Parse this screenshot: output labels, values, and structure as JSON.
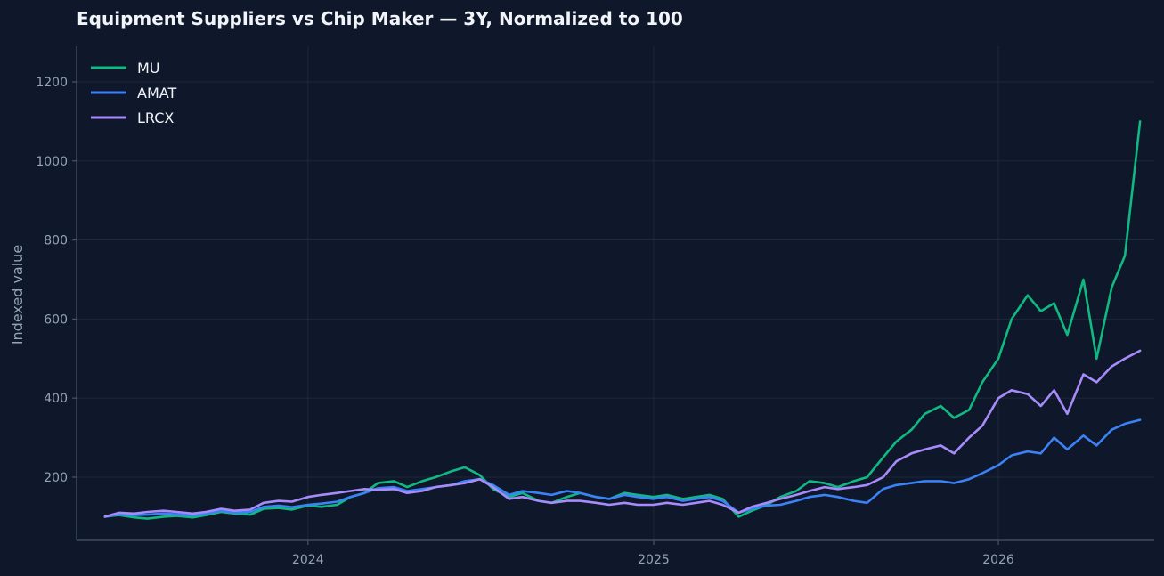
{
  "chart_data": {
    "type": "line",
    "title": "Equipment Suppliers vs Chip Maker — 3Y, Normalized to 100",
    "xlabel": "",
    "ylabel": "Indexed value",
    "xlim": [
      "2023-05-01",
      "2026-06-15"
    ],
    "ylim": [
      40,
      1290
    ],
    "x_ticks": [
      "2024-01-01",
      "2025-01-01",
      "2026-01-01"
    ],
    "x_tick_labels": [
      "2024",
      "2025",
      "2026"
    ],
    "y_ticks": [
      200,
      400,
      600,
      800,
      1000,
      1200
    ],
    "y_tick_labels": [
      "200",
      "400",
      "600",
      "800",
      "1000",
      "1200"
    ],
    "grid": true,
    "legend_position": "top-left",
    "x": [
      "2023-05-31",
      "2023-06-15",
      "2023-07-01",
      "2023-07-15",
      "2023-08-01",
      "2023-08-15",
      "2023-09-01",
      "2023-09-15",
      "2023-10-01",
      "2023-10-15",
      "2023-11-01",
      "2023-11-15",
      "2023-12-01",
      "2023-12-15",
      "2024-01-01",
      "2024-01-15",
      "2024-02-01",
      "2024-02-15",
      "2024-03-01",
      "2024-03-15",
      "2024-04-01",
      "2024-04-15",
      "2024-05-01",
      "2024-05-15",
      "2024-06-01",
      "2024-06-15",
      "2024-07-01",
      "2024-07-15",
      "2024-08-01",
      "2024-08-15",
      "2024-09-01",
      "2024-09-15",
      "2024-10-01",
      "2024-10-15",
      "2024-11-01",
      "2024-11-15",
      "2024-12-01",
      "2024-12-15",
      "2025-01-01",
      "2025-01-15",
      "2025-02-01",
      "2025-02-15",
      "2025-03-01",
      "2025-03-15",
      "2025-04-01",
      "2025-04-15",
      "2025-05-01",
      "2025-05-15",
      "2025-06-01",
      "2025-06-15",
      "2025-07-01",
      "2025-07-15",
      "2025-08-01",
      "2025-08-15",
      "2025-09-01",
      "2025-09-15",
      "2025-10-01",
      "2025-10-15",
      "2025-11-01",
      "2025-11-15",
      "2025-12-01",
      "2025-12-15",
      "2026-01-01",
      "2026-01-15",
      "2026-02-01",
      "2026-02-15",
      "2026-03-01",
      "2026-03-15",
      "2026-04-01",
      "2026-04-15",
      "2026-05-01",
      "2026-05-15",
      "2026-05-31"
    ],
    "series": [
      {
        "name": "MU",
        "color": "#10b981",
        "values": [
          100,
          104,
          98,
          95,
          100,
          102,
          98,
          104,
          112,
          108,
          105,
          120,
          122,
          118,
          128,
          125,
          130,
          150,
          160,
          185,
          190,
          175,
          190,
          200,
          215,
          225,
          205,
          170,
          150,
          160,
          140,
          135,
          150,
          160,
          150,
          145,
          160,
          155,
          150,
          155,
          145,
          150,
          155,
          145,
          100,
          115,
          130,
          150,
          165,
          190,
          185,
          175,
          190,
          200,
          250,
          290,
          320,
          360,
          380,
          350,
          370,
          440,
          500,
          600,
          660,
          620,
          640,
          560,
          700,
          500,
          680,
          760,
          1100
        ]
      },
      {
        "name": "AMAT",
        "color": "#3b82f6",
        "values": [
          100,
          106,
          104,
          105,
          108,
          106,
          103,
          108,
          115,
          110,
          112,
          125,
          128,
          124,
          130,
          133,
          138,
          150,
          160,
          172,
          175,
          165,
          170,
          175,
          180,
          190,
          195,
          180,
          155,
          165,
          160,
          155,
          165,
          160,
          150,
          145,
          155,
          150,
          145,
          150,
          140,
          145,
          150,
          140,
          110,
          120,
          128,
          130,
          140,
          150,
          155,
          150,
          140,
          135,
          170,
          180,
          185,
          190,
          190,
          185,
          195,
          210,
          230,
          255,
          265,
          260,
          300,
          270,
          305,
          280,
          320,
          335,
          345
        ]
      },
      {
        "name": "LRCX",
        "color": "#a78bfa",
        "values": [
          100,
          110,
          108,
          112,
          115,
          112,
          108,
          112,
          120,
          115,
          118,
          135,
          140,
          138,
          150,
          155,
          160,
          165,
          170,
          168,
          170,
          160,
          165,
          175,
          180,
          185,
          195,
          175,
          145,
          150,
          140,
          135,
          140,
          140,
          135,
          130,
          135,
          130,
          130,
          135,
          130,
          135,
          140,
          130,
          110,
          125,
          135,
          145,
          155,
          165,
          175,
          170,
          175,
          180,
          200,
          240,
          260,
          270,
          280,
          260,
          300,
          330,
          400,
          420,
          410,
          380,
          420,
          360,
          460,
          440,
          480,
          500,
          520
        ]
      }
    ]
  }
}
